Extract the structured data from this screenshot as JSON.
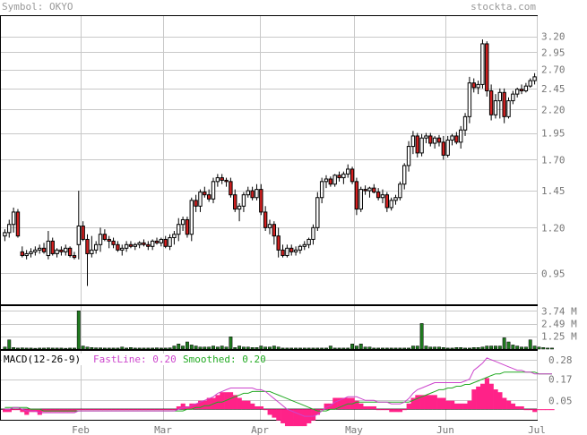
{
  "header": {
    "symbol_label": "Symbol: OKYO",
    "site": "stockta.com"
  },
  "colors": {
    "up": "#ffffff",
    "down": "#d42020",
    "vol_bar": "#1f7a1f",
    "macd_hist": "#ff2288",
    "fastline": "#cc44cc",
    "smoothed": "#22aa22",
    "grid": "#c8c8c8",
    "frame": "#000000",
    "header_text": "#999999",
    "tick_text": "#777777"
  },
  "chart_data": [
    {
      "type": "candlestick",
      "name": "price",
      "scale": "log",
      "ylim": [
        0.81,
        3.55
      ],
      "y_ticks": [
        0.95,
        1.2,
        1.45,
        1.7,
        1.95,
        2.2,
        2.45,
        2.7,
        2.95,
        3.2
      ],
      "x_ticks": [
        "Feb",
        "Mar",
        "Apr",
        "May",
        "Jun",
        "Jul"
      ],
      "grid": true,
      "candles": [
        [
          1.15,
          1.19,
          1.12,
          1.17
        ],
        [
          1.17,
          1.25,
          1.14,
          1.22
        ],
        [
          1.22,
          1.33,
          1.17,
          1.3
        ],
        [
          1.3,
          1.32,
          1.14,
          1.15
        ],
        [
          1.06,
          1.09,
          1.03,
          1.04
        ],
        [
          1.04,
          1.07,
          1.02,
          1.05
        ],
        [
          1.05,
          1.08,
          1.03,
          1.06
        ],
        [
          1.06,
          1.09,
          1.04,
          1.07
        ],
        [
          1.07,
          1.1,
          1.05,
          1.08
        ],
        [
          1.08,
          1.11,
          1.05,
          1.06
        ],
        [
          1.04,
          1.18,
          1.02,
          1.12
        ],
        [
          1.12,
          1.14,
          1.04,
          1.05
        ],
        [
          1.05,
          1.08,
          1.03,
          1.07
        ],
        [
          1.07,
          1.09,
          1.04,
          1.06
        ],
        [
          1.06,
          1.1,
          1.04,
          1.08
        ],
        [
          1.08,
          1.09,
          1.03,
          1.04
        ],
        [
          1.04,
          1.06,
          1.02,
          1.03
        ],
        [
          1.1,
          1.45,
          1.02,
          1.21
        ],
        [
          1.21,
          1.24,
          1.12,
          1.13
        ],
        [
          1.13,
          1.16,
          0.89,
          1.05
        ],
        [
          1.05,
          1.15,
          1.03,
          1.07
        ],
        [
          1.07,
          1.12,
          1.05,
          1.1
        ],
        [
          1.1,
          1.2,
          1.06,
          1.16
        ],
        [
          1.16,
          1.19,
          1.12,
          1.13
        ],
        [
          1.13,
          1.15,
          1.08,
          1.12
        ],
        [
          1.12,
          1.14,
          1.08,
          1.1
        ],
        [
          1.1,
          1.12,
          1.06,
          1.07
        ],
        [
          1.07,
          1.1,
          1.04,
          1.08
        ],
        [
          1.08,
          1.12,
          1.06,
          1.1
        ],
        [
          1.1,
          1.12,
          1.08,
          1.09
        ],
        [
          1.09,
          1.11,
          1.07,
          1.1
        ],
        [
          1.1,
          1.12,
          1.08,
          1.11
        ],
        [
          1.11,
          1.13,
          1.09,
          1.1
        ],
        [
          1.1,
          1.12,
          1.07,
          1.09
        ],
        [
          1.09,
          1.13,
          1.07,
          1.12
        ],
        [
          1.12,
          1.14,
          1.1,
          1.11
        ],
        [
          1.11,
          1.14,
          1.09,
          1.13
        ],
        [
          1.13,
          1.15,
          1.08,
          1.09
        ],
        [
          1.09,
          1.16,
          1.07,
          1.14
        ],
        [
          1.14,
          1.18,
          1.1,
          1.16
        ],
        [
          1.16,
          1.26,
          1.12,
          1.22
        ],
        [
          1.22,
          1.27,
          1.18,
          1.25
        ],
        [
          1.25,
          1.27,
          1.14,
          1.16
        ],
        [
          1.16,
          1.4,
          1.12,
          1.38
        ],
        [
          1.38,
          1.42,
          1.3,
          1.34
        ],
        [
          1.34,
          1.46,
          1.3,
          1.44
        ],
        [
          1.44,
          1.48,
          1.4,
          1.42
        ],
        [
          1.42,
          1.46,
          1.37,
          1.39
        ],
        [
          1.39,
          1.55,
          1.36,
          1.52
        ],
        [
          1.52,
          1.58,
          1.48,
          1.55
        ],
        [
          1.55,
          1.58,
          1.5,
          1.53
        ],
        [
          1.53,
          1.55,
          1.48,
          1.52
        ],
        [
          1.52,
          1.55,
          1.4,
          1.42
        ],
        [
          1.42,
          1.46,
          1.3,
          1.32
        ],
        [
          1.32,
          1.36,
          1.24,
          1.34
        ],
        [
          1.34,
          1.44,
          1.3,
          1.42
        ],
        [
          1.42,
          1.48,
          1.4,
          1.45
        ],
        [
          1.45,
          1.48,
          1.38,
          1.4
        ],
        [
          1.4,
          1.5,
          1.38,
          1.46
        ],
        [
          1.46,
          1.5,
          1.28,
          1.3
        ],
        [
          1.3,
          1.34,
          1.18,
          1.2
        ],
        [
          1.2,
          1.25,
          1.16,
          1.22
        ],
        [
          1.22,
          1.24,
          1.1,
          1.15
        ],
        [
          1.15,
          1.2,
          1.03,
          1.07
        ],
        [
          1.07,
          1.1,
          1.03,
          1.04
        ],
        [
          1.04,
          1.1,
          1.03,
          1.08
        ],
        [
          1.08,
          1.1,
          1.04,
          1.06
        ],
        [
          1.06,
          1.09,
          1.04,
          1.07
        ],
        [
          1.07,
          1.1,
          1.05,
          1.09
        ],
        [
          1.09,
          1.12,
          1.07,
          1.1
        ],
        [
          1.1,
          1.14,
          1.08,
          1.13
        ],
        [
          1.13,
          1.22,
          1.1,
          1.2
        ],
        [
          1.2,
          1.44,
          1.18,
          1.4
        ],
        [
          1.4,
          1.55,
          1.36,
          1.52
        ],
        [
          1.52,
          1.57,
          1.47,
          1.54
        ],
        [
          1.54,
          1.56,
          1.48,
          1.5
        ],
        [
          1.5,
          1.58,
          1.48,
          1.57
        ],
        [
          1.57,
          1.6,
          1.52,
          1.55
        ],
        [
          1.55,
          1.6,
          1.5,
          1.58
        ],
        [
          1.58,
          1.66,
          1.55,
          1.62
        ],
        [
          1.62,
          1.64,
          1.5,
          1.52
        ],
        [
          1.52,
          1.55,
          1.28,
          1.32
        ],
        [
          1.32,
          1.48,
          1.3,
          1.46
        ],
        [
          1.46,
          1.49,
          1.42,
          1.45
        ],
        [
          1.45,
          1.48,
          1.4,
          1.47
        ],
        [
          1.47,
          1.5,
          1.43,
          1.44
        ],
        [
          1.44,
          1.47,
          1.38,
          1.4
        ],
        [
          1.4,
          1.46,
          1.36,
          1.42
        ],
        [
          1.42,
          1.44,
          1.3,
          1.33
        ],
        [
          1.33,
          1.4,
          1.31,
          1.38
        ],
        [
          1.38,
          1.42,
          1.35,
          1.4
        ],
        [
          1.4,
          1.52,
          1.38,
          1.5
        ],
        [
          1.5,
          1.67,
          1.46,
          1.65
        ],
        [
          1.65,
          1.87,
          1.6,
          1.82
        ],
        [
          1.82,
          1.97,
          1.75,
          1.92
        ],
        [
          1.92,
          1.95,
          1.72,
          1.76
        ],
        [
          1.76,
          1.94,
          1.73,
          1.9
        ],
        [
          1.9,
          1.95,
          1.85,
          1.92
        ],
        [
          1.92,
          1.95,
          1.82,
          1.85
        ],
        [
          1.85,
          1.92,
          1.8,
          1.9
        ],
        [
          1.9,
          1.93,
          1.82,
          1.86
        ],
        [
          1.86,
          1.92,
          1.7,
          1.74
        ],
        [
          1.74,
          1.92,
          1.72,
          1.88
        ],
        [
          1.88,
          1.94,
          1.83,
          1.92
        ],
        [
          1.92,
          1.96,
          1.84,
          1.86
        ],
        [
          1.86,
          2.02,
          1.8,
          1.98
        ],
        [
          1.98,
          2.16,
          1.92,
          2.12
        ],
        [
          2.12,
          2.6,
          2.05,
          2.52
        ],
        [
          2.52,
          2.58,
          2.4,
          2.46
        ],
        [
          2.46,
          2.55,
          2.38,
          2.5
        ],
        [
          2.5,
          3.15,
          2.45,
          3.08
        ],
        [
          3.08,
          3.12,
          2.35,
          2.42
        ],
        [
          2.42,
          2.5,
          2.08,
          2.14
        ],
        [
          2.14,
          2.38,
          2.1,
          2.3
        ],
        [
          2.3,
          2.45,
          2.1,
          2.4
        ],
        [
          2.4,
          2.45,
          2.05,
          2.12
        ],
        [
          2.12,
          2.34,
          2.1,
          2.3
        ],
        [
          2.3,
          2.42,
          2.26,
          2.38
        ],
        [
          2.38,
          2.46,
          2.34,
          2.44
        ],
        [
          2.44,
          2.5,
          2.38,
          2.42
        ],
        [
          2.42,
          2.52,
          2.4,
          2.48
        ],
        [
          2.48,
          2.58,
          2.46,
          2.55
        ],
        [
          2.55,
          2.65,
          2.5,
          2.6
        ]
      ]
    },
    {
      "type": "bar",
      "name": "volume",
      "ylim": [
        0,
        4.2
      ],
      "y_ticks": [
        "3.74 M",
        "2.49 M",
        "1.25 M"
      ],
      "y_tick_values": [
        3.74,
        2.49,
        1.25
      ],
      "values": [
        0.2,
        0.9,
        0.15,
        0.1,
        0.12,
        0.1,
        0.1,
        0.08,
        0.1,
        0.1,
        0.12,
        0.1,
        0.1,
        0.1,
        0.08,
        0.1,
        0.1,
        3.74,
        0.3,
        0.2,
        0.15,
        0.12,
        0.12,
        0.1,
        0.1,
        0.1,
        0.1,
        0.2,
        0.1,
        0.15,
        0.1,
        0.1,
        0.1,
        0.1,
        0.1,
        0.12,
        0.1,
        0.1,
        0.12,
        0.3,
        0.5,
        0.3,
        0.7,
        0.4,
        0.3,
        0.2,
        0.2,
        0.2,
        0.3,
        0.2,
        0.3,
        0.2,
        1.2,
        0.15,
        0.3,
        0.2,
        0.2,
        0.15,
        0.15,
        0.3,
        0.2,
        0.2,
        0.3,
        0.2,
        0.1,
        0.1,
        0.1,
        0.1,
        0.1,
        0.1,
        0.1,
        0.1,
        0.1,
        0.1,
        0.1,
        0.3,
        0.1,
        0.1,
        0.1,
        0.1,
        0.5,
        0.3,
        0.5,
        0.2,
        0.2,
        0.1,
        0.1,
        0.1,
        0.1,
        0.1,
        0.1,
        0.1,
        0.1,
        0.1,
        0.3,
        0.3,
        2.5,
        0.3,
        0.2,
        0.2,
        0.2,
        0.15,
        0.1,
        0.1,
        0.15,
        0.15,
        0.1,
        0.1,
        0.15,
        0.15,
        0.2,
        0.3,
        0.3,
        0.3,
        0.3,
        1.1,
        0.7,
        0.4,
        0.3,
        0.2,
        0.2,
        0.9,
        0.3,
        0.2,
        0.15,
        0.1,
        0.1
      ]
    },
    {
      "type": "line",
      "name": "macd",
      "labels": {
        "indicator": "MACD(12-26-9)",
        "fast": "FastLine: 0.20",
        "smoothed": "Smoothed: 0.20"
      },
      "ylim": [
        -0.06,
        0.33
      ],
      "y_ticks": [
        0.28,
        0.17,
        0.05
      ],
      "series": [
        {
          "name": "FastLine",
          "values": [
            0.0,
            0.0,
            0.01,
            0.01,
            0.0,
            -0.01,
            -0.01,
            -0.01,
            -0.02,
            -0.02,
            -0.02,
            -0.02,
            -0.02,
            -0.02,
            -0.02,
            -0.02,
            -0.02,
            -0.01,
            -0.01,
            -0.01,
            -0.01,
            -0.01,
            -0.01,
            -0.01,
            -0.01,
            -0.01,
            -0.01,
            -0.01,
            -0.01,
            -0.01,
            -0.01,
            -0.01,
            -0.01,
            -0.01,
            -0.01,
            -0.01,
            -0.01,
            -0.01,
            -0.01,
            -0.01,
            0.0,
            0.01,
            0.01,
            0.02,
            0.03,
            0.04,
            0.05,
            0.06,
            0.07,
            0.09,
            0.1,
            0.11,
            0.12,
            0.12,
            0.12,
            0.12,
            0.12,
            0.12,
            0.11,
            0.11,
            0.1,
            0.08,
            0.06,
            0.04,
            0.02,
            0.0,
            -0.01,
            -0.02,
            -0.03,
            -0.04,
            -0.04,
            -0.04,
            -0.03,
            -0.01,
            0.01,
            0.02,
            0.04,
            0.05,
            0.06,
            0.07,
            0.07,
            0.07,
            0.06,
            0.05,
            0.05,
            0.05,
            0.04,
            0.04,
            0.04,
            0.03,
            0.03,
            0.03,
            0.04,
            0.06,
            0.09,
            0.11,
            0.12,
            0.13,
            0.14,
            0.15,
            0.15,
            0.15,
            0.15,
            0.15,
            0.15,
            0.15,
            0.16,
            0.17,
            0.22,
            0.24,
            0.26,
            0.29,
            0.28,
            0.27,
            0.26,
            0.25,
            0.24,
            0.23,
            0.22,
            0.22,
            0.21,
            0.21,
            0.2,
            0.2,
            0.2,
            0.2,
            0.2
          ]
        },
        {
          "name": "Smoothed",
          "values": [
            0.01,
            0.01,
            0.01,
            0.01,
            0.01,
            0.01,
            0.0,
            0.0,
            0.0,
            -0.01,
            -0.01,
            -0.01,
            -0.01,
            -0.01,
            -0.01,
            -0.01,
            -0.01,
            -0.01,
            -0.01,
            -0.01,
            -0.01,
            -0.01,
            -0.01,
            -0.01,
            -0.01,
            -0.01,
            -0.01,
            -0.01,
            -0.01,
            -0.01,
            -0.01,
            -0.01,
            -0.01,
            -0.01,
            -0.01,
            -0.01,
            -0.01,
            -0.01,
            -0.01,
            -0.01,
            -0.01,
            -0.01,
            0.0,
            0.0,
            0.01,
            0.01,
            0.02,
            0.02,
            0.03,
            0.04,
            0.04,
            0.05,
            0.06,
            0.07,
            0.08,
            0.09,
            0.09,
            0.1,
            0.1,
            0.1,
            0.1,
            0.1,
            0.09,
            0.08,
            0.07,
            0.06,
            0.05,
            0.04,
            0.03,
            0.02,
            0.01,
            0.0,
            -0.01,
            -0.01,
            -0.01,
            0.0,
            0.0,
            0.01,
            0.02,
            0.03,
            0.03,
            0.04,
            0.04,
            0.04,
            0.04,
            0.04,
            0.04,
            0.04,
            0.04,
            0.04,
            0.04,
            0.04,
            0.04,
            0.04,
            0.05,
            0.06,
            0.07,
            0.08,
            0.09,
            0.1,
            0.11,
            0.11,
            0.12,
            0.12,
            0.13,
            0.13,
            0.14,
            0.14,
            0.15,
            0.16,
            0.17,
            0.18,
            0.19,
            0.2,
            0.2,
            0.21,
            0.21,
            0.21,
            0.21,
            0.21,
            0.21,
            0.21,
            0.21,
            0.2,
            0.2,
            0.2,
            0.2
          ]
        }
      ],
      "histogram_note": "difference FastLine - Smoothed"
    }
  ]
}
